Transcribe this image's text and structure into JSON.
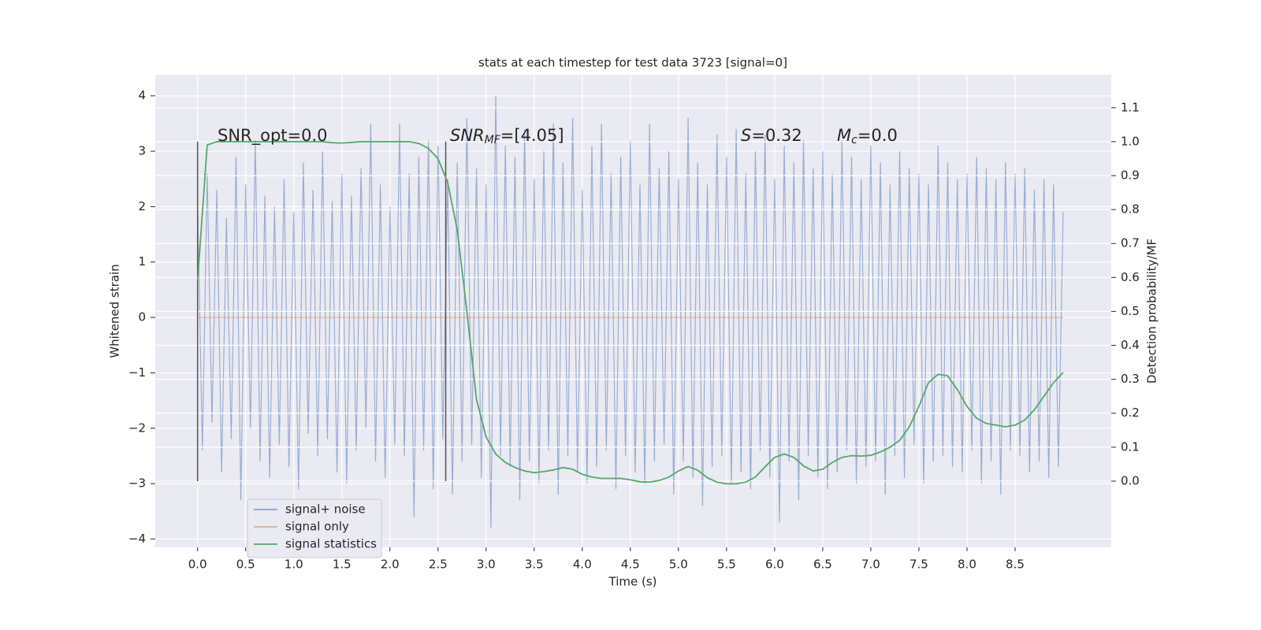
{
  "chart_data": {
    "type": "line",
    "title": "stats at each timestep for test data 3723 [signal=0]",
    "xlabel": "Time (s)",
    "ylabel": "Whitened strain",
    "y2label": "Detection probability/MF",
    "grid": true,
    "legend": "lower left",
    "xlim": [
      -0.44,
      9.5
    ],
    "ylim": [
      -4.15,
      4.38
    ],
    "y2lim": [
      -0.195,
      1.197
    ],
    "xticks": [
      {
        "value": 0,
        "label": "0.0"
      },
      0.5,
      {
        "value": 1,
        "label": "1.0"
      },
      1.5,
      {
        "value": 2,
        "label": "2.0"
      },
      2.5,
      {
        "value": 3,
        "label": "3.0"
      },
      3.5,
      {
        "value": 4,
        "label": "4.0"
      },
      4.5,
      {
        "value": 5,
        "label": "5.0"
      },
      5.5,
      {
        "value": 6,
        "label": "6.0"
      },
      6.5,
      {
        "value": 7,
        "label": "7.0"
      },
      7.5,
      {
        "value": 8,
        "label": "8.0"
      },
      8.5
    ],
    "yticks": [
      {
        "value": -4,
        "label": "−4"
      },
      {
        "value": -3,
        "label": "−3"
      },
      {
        "value": -2,
        "label": "−2"
      },
      {
        "value": -1,
        "label": "−1"
      },
      0,
      1,
      2,
      3,
      4
    ],
    "y2ticks": [
      {
        "value": 0,
        "label": "0.0"
      },
      0.1,
      0.2,
      0.3,
      0.4,
      0.5,
      0.6,
      0.7,
      0.8,
      0.9,
      {
        "value": 1,
        "label": "1.0"
      },
      1.1
    ],
    "vlines": {
      "x": [
        0,
        2.58
      ],
      "ymin": 0,
      "ymax": 1,
      "axis": "y2",
      "color": "#555555"
    },
    "annotations": [
      {
        "text": "SNR_opt=0.0"
      },
      {
        "text": "SNR",
        "sub": "MF",
        "rest": "=[4.05]"
      },
      {
        "text": "S",
        "rest": "=0.32"
      },
      {
        "text": "M",
        "sub": "c",
        "rest": "=0.0"
      }
    ],
    "series": [
      {
        "name": "signal+ noise",
        "color": "#4c72b0",
        "x": [
          0,
          0.05,
          0.1,
          0.15,
          0.2,
          0.25,
          0.3,
          0.35,
          0.4,
          0.45,
          0.5,
          0.55,
          0.6,
          0.65,
          0.7,
          0.75,
          0.8,
          0.85,
          0.9,
          0.95,
          1,
          1.05,
          1.1,
          1.15,
          1.2,
          1.25,
          1.3,
          1.35,
          1.4,
          1.45,
          1.5,
          1.55,
          1.6,
          1.65,
          1.7,
          1.75,
          1.8,
          1.85,
          1.9,
          1.95,
          2,
          2.05,
          2.1,
          2.15,
          2.2,
          2.25,
          2.3,
          2.35,
          2.4,
          2.45,
          2.5,
          2.55,
          2.6,
          2.65,
          2.7,
          2.75,
          2.8,
          2.85,
          2.9,
          2.95,
          3,
          3.05,
          3.1,
          3.15,
          3.2,
          3.25,
          3.3,
          3.35,
          3.4,
          3.45,
          3.5,
          3.55,
          3.6,
          3.65,
          3.7,
          3.75,
          3.8,
          3.85,
          3.9,
          3.95,
          4,
          4.05,
          4.1,
          4.15,
          4.2,
          4.25,
          4.3,
          4.35,
          4.4,
          4.45,
          4.5,
          4.55,
          4.6,
          4.65,
          4.7,
          4.75,
          4.8,
          4.85,
          4.9,
          4.95,
          5,
          5.05,
          5.1,
          5.15,
          5.2,
          5.25,
          5.3,
          5.35,
          5.4,
          5.45,
          5.5,
          5.55,
          5.6,
          5.65,
          5.7,
          5.75,
          5.8,
          5.85,
          5.9,
          5.95,
          6,
          6.05,
          6.1,
          6.15,
          6.2,
          6.25,
          6.3,
          6.35,
          6.4,
          6.45,
          6.5,
          6.55,
          6.6,
          6.65,
          6.7,
          6.75,
          6.8,
          6.85,
          6.9,
          6.95,
          7,
          7.05,
          7.1,
          7.15,
          7.2,
          7.25,
          7.3,
          7.35,
          7.4,
          7.45,
          7.5,
          7.55,
          7.6,
          7.65,
          7.7,
          7.75,
          7.8,
          7.85,
          7.9,
          7.95,
          8,
          8.05,
          8.1,
          8.15,
          8.2,
          8.25,
          8.3,
          8.35,
          8.4,
          8.45,
          8.5,
          8.55,
          8.6,
          8.65,
          8.7,
          8.75,
          8.8,
          8.85,
          8.9,
          8.95,
          9
        ],
        "values": [
          2.1,
          -2.4,
          2.6,
          -1.9,
          2.3,
          -2.8,
          1.8,
          -2.2,
          2.9,
          -3.3,
          2.4,
          -2.0,
          3.2,
          -2.6,
          2.2,
          -2.9,
          2.0,
          -2.3,
          2.5,
          -2.7,
          1.9,
          -3.1,
          2.8,
          -2.1,
          2.3,
          -2.5,
          3.0,
          -2.2,
          2.1,
          -2.8,
          2.6,
          -3.0,
          2.2,
          -2.4,
          2.7,
          -2.0,
          3.5,
          -2.6,
          2.4,
          -2.9,
          2.0,
          -2.3,
          3.5,
          -2.5,
          2.6,
          -3.6,
          2.9,
          -2.4,
          3.2,
          -3.1,
          3.1,
          -2.2,
          2.5,
          -3.2,
          2.8,
          -2.6,
          3.6,
          -2.3,
          2.7,
          -2.9,
          2.4,
          -3.8,
          4.0,
          -2.5,
          3.1,
          -2.7,
          2.9,
          -3.3,
          3.4,
          -2.6,
          2.5,
          -3.0,
          3.0,
          -2.4,
          3.5,
          -3.2,
          2.8,
          -2.5,
          3.6,
          -2.8,
          2.3,
          -3.0,
          3.1,
          -2.7,
          3.5,
          -2.4,
          2.6,
          -3.1,
          2.9,
          -2.5,
          3.2,
          -2.8,
          2.4,
          -3.0,
          3.5,
          -2.6,
          2.7,
          -2.3,
          3.0,
          -3.2,
          2.5,
          -2.6,
          3.6,
          -2.9,
          2.8,
          -3.4,
          2.4,
          -2.7,
          3.3,
          -2.5,
          2.9,
          -3.0,
          3.4,
          -2.8,
          2.6,
          -3.1,
          3.0,
          -2.4,
          3.3,
          -2.9,
          2.5,
          -3.7,
          3.1,
          -2.6,
          2.8,
          -3.3,
          3.2,
          -2.5,
          2.7,
          -2.9,
          3.0,
          -3.1,
          2.6,
          -2.8,
          3.2,
          -2.4,
          2.9,
          -3.0,
          2.5,
          -2.7,
          3.1,
          -2.6,
          2.8,
          -3.2,
          2.4,
          -2.5,
          3.0,
          -2.9,
          2.7,
          -2.3,
          2.6,
          -3.0,
          2.4,
          -2.6,
          3.1,
          -2.5,
          2.8,
          -2.7,
          2.5,
          -2.8,
          2.6,
          -2.4,
          2.9,
          -3.0,
          2.7,
          -2.6,
          2.5,
          -3.2,
          2.8,
          -2.4,
          2.6,
          -2.5,
          2.7,
          -2.8,
          2.3,
          -2.6,
          2.5,
          -2.9,
          2.4,
          -2.7,
          1.9
        ]
      },
      {
        "name": "signal only",
        "color": "#dd8452",
        "x": [
          0,
          9
        ],
        "values": [
          0,
          0
        ]
      },
      {
        "name": "signal statistics",
        "color": "#55a868",
        "axis": "y2",
        "x": [
          0,
          0.1,
          0.2,
          0.3,
          0.4,
          0.5,
          0.6,
          0.7,
          0.8,
          0.9,
          1,
          1.1,
          1.2,
          1.3,
          1.4,
          1.5,
          1.6,
          1.7,
          1.8,
          1.9,
          2,
          2.1,
          2.2,
          2.3,
          2.4,
          2.5,
          2.6,
          2.7,
          2.8,
          2.9,
          3,
          3.1,
          3.2,
          3.3,
          3.4,
          3.5,
          3.6,
          3.7,
          3.8,
          3.9,
          4,
          4.1,
          4.2,
          4.3,
          4.4,
          4.5,
          4.6,
          4.7,
          4.8,
          4.9,
          5,
          5.1,
          5.2,
          5.3,
          5.4,
          5.5,
          5.6,
          5.7,
          5.8,
          5.9,
          6,
          6.1,
          6.2,
          6.3,
          6.4,
          6.5,
          6.6,
          6.7,
          6.8,
          6.9,
          7,
          7.1,
          7.2,
          7.3,
          7.4,
          7.5,
          7.6,
          7.7,
          7.8,
          7.9,
          8,
          8.1,
          8.2,
          8.3,
          8.4,
          8.5,
          8.6,
          8.7,
          8.8,
          8.9,
          9
        ],
        "values": [
          0.59,
          0.99,
          1.0,
          1.0,
          1.0,
          1.0,
          1.0,
          1.0,
          1.0,
          1.0,
          1.0,
          1.0,
          1.0,
          1.0,
          0.997,
          0.996,
          0.998,
          1.0,
          1.0,
          1.0,
          1.0,
          1.0,
          1.0,
          0.995,
          0.98,
          0.95,
          0.88,
          0.74,
          0.5,
          0.24,
          0.13,
          0.08,
          0.055,
          0.04,
          0.03,
          0.025,
          0.028,
          0.033,
          0.04,
          0.035,
          0.02,
          0.012,
          0.008,
          0.008,
          0.008,
          0.004,
          -0.002,
          -0.003,
          0.002,
          0.012,
          0.03,
          0.043,
          0.032,
          0.01,
          -0.003,
          -0.008,
          -0.008,
          -0.003,
          0.012,
          0.042,
          0.07,
          0.08,
          0.07,
          0.045,
          0.03,
          0.035,
          0.055,
          0.07,
          0.075,
          0.074,
          0.076,
          0.086,
          0.1,
          0.12,
          0.16,
          0.22,
          0.29,
          0.315,
          0.31,
          0.27,
          0.22,
          0.185,
          0.17,
          0.165,
          0.16,
          0.165,
          0.18,
          0.21,
          0.25,
          0.29,
          0.32
        ]
      }
    ]
  }
}
